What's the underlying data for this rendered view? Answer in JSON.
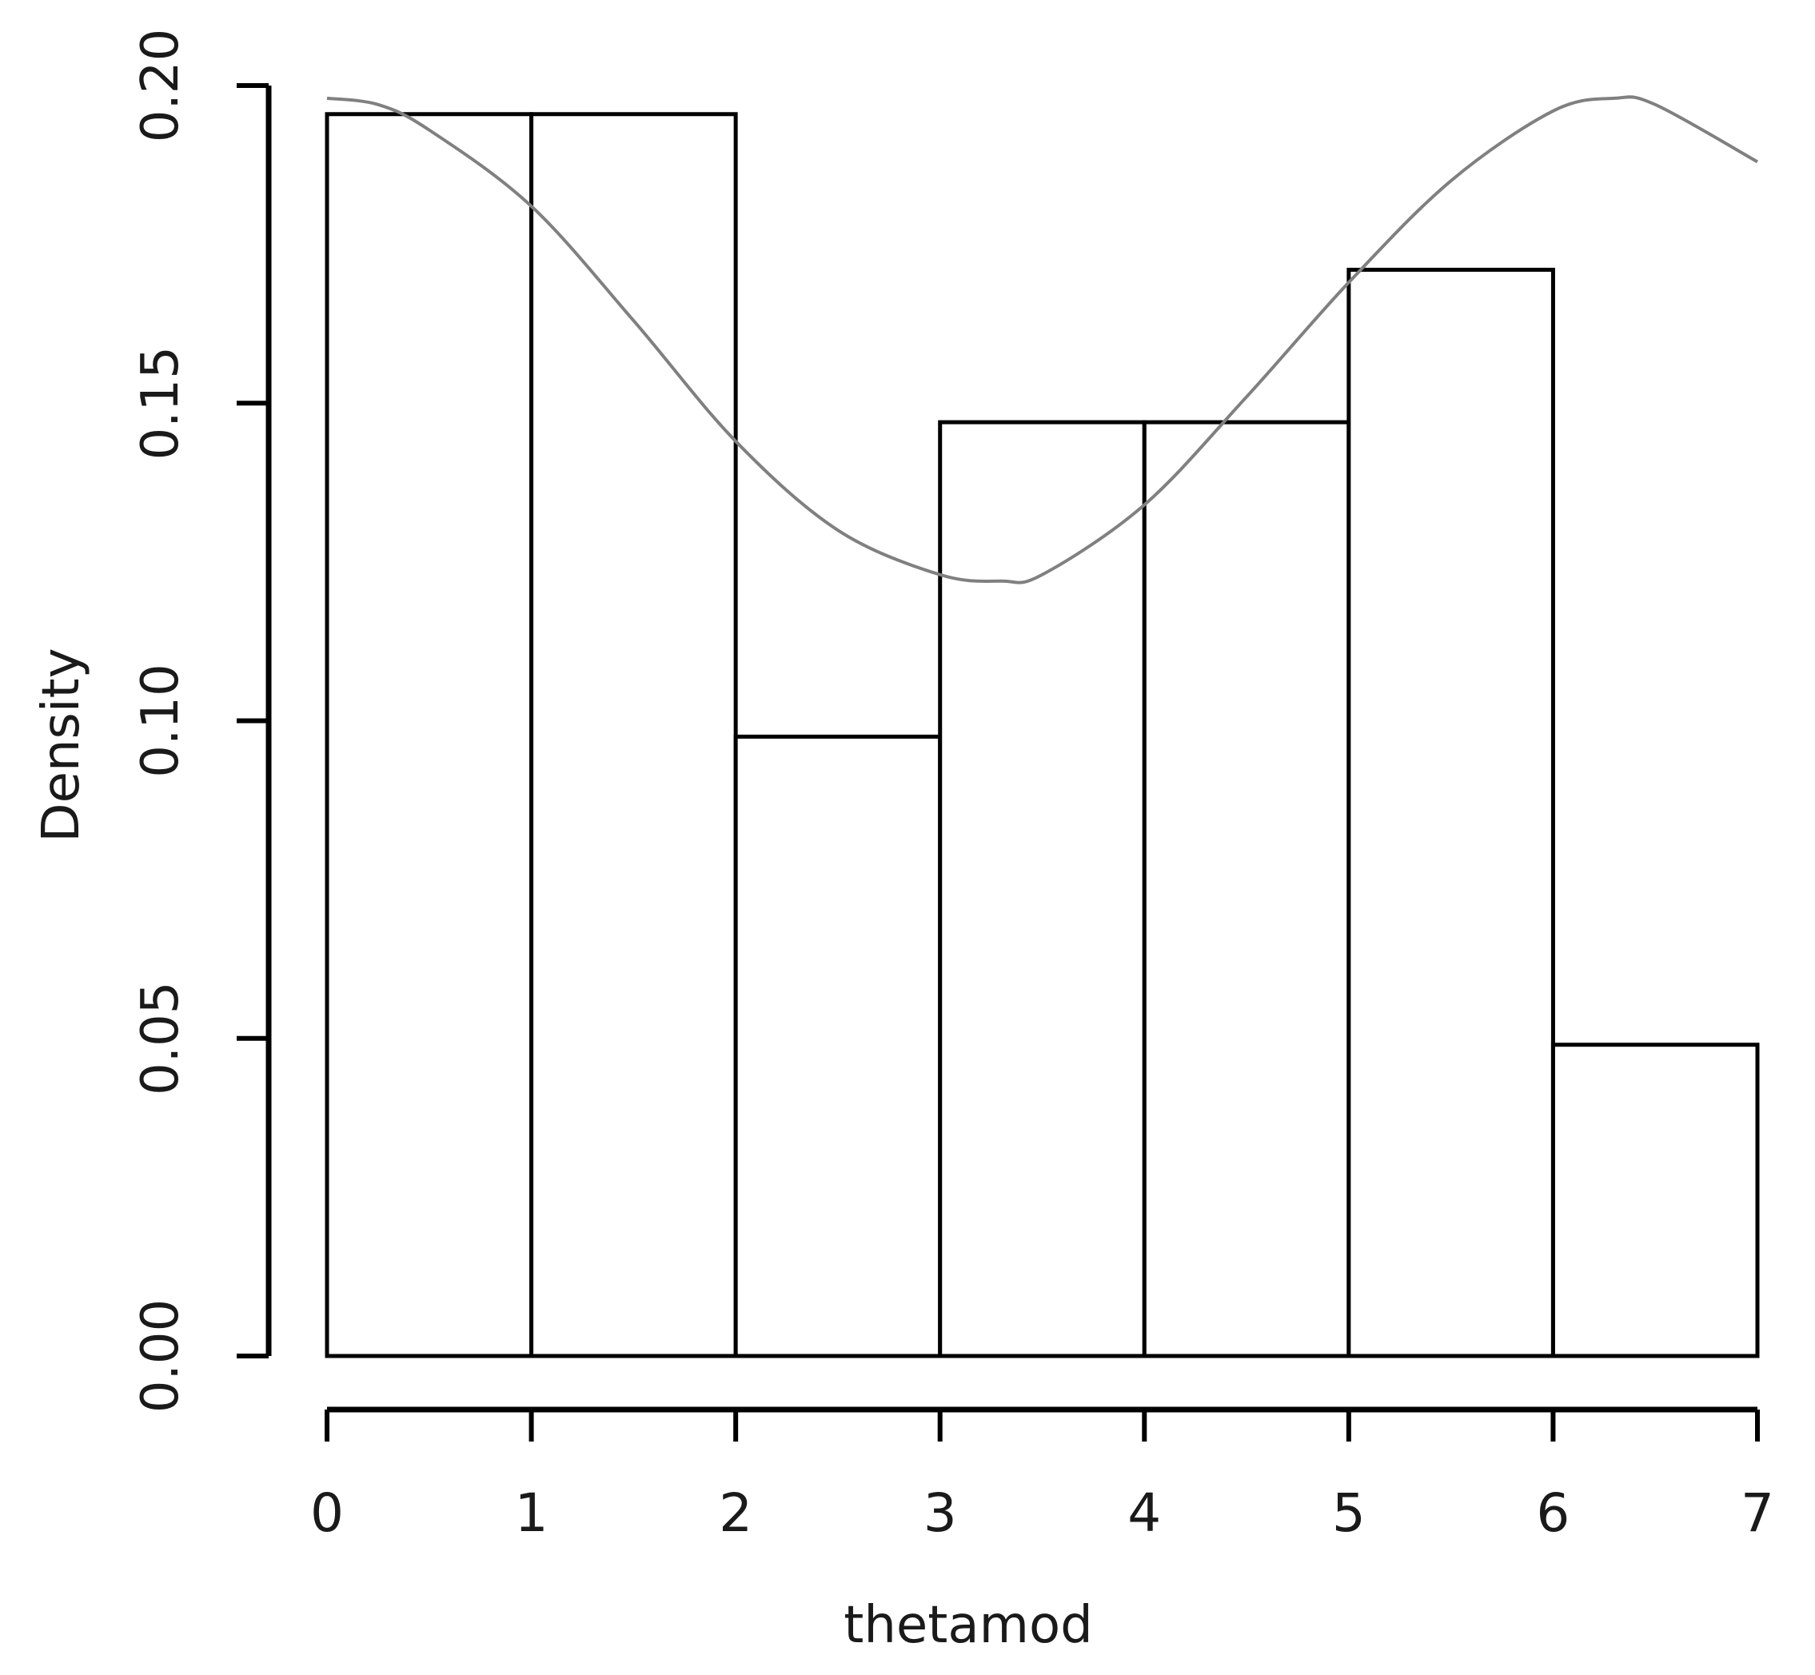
{
  "chart_data": {
    "type": "bar",
    "title": "",
    "xlabel": "thetamod",
    "ylabel": "Density",
    "xlim": [
      0,
      7
    ],
    "ylim": [
      0,
      0.2
    ],
    "x_ticks": [
      "0",
      "1",
      "2",
      "3",
      "4",
      "5",
      "6",
      "7"
    ],
    "y_ticks": [
      "0.00",
      "0.05",
      "0.10",
      "0.15",
      "0.20"
    ],
    "grid": false,
    "legend": "none",
    "bins": [
      {
        "start": 0,
        "end": 1,
        "value": 0.1955
      },
      {
        "start": 1,
        "end": 2,
        "value": 0.1955
      },
      {
        "start": 2,
        "end": 3,
        "value": 0.0975
      },
      {
        "start": 3,
        "end": 4,
        "value": 0.147
      },
      {
        "start": 4,
        "end": 5,
        "value": 0.147
      },
      {
        "start": 5,
        "end": 6,
        "value": 0.171
      },
      {
        "start": 6,
        "end": 7,
        "value": 0.049
      }
    ],
    "density_curve": {
      "x": [
        0,
        0.25,
        0.5,
        1,
        1.5,
        2,
        2.5,
        3,
        3.3,
        3.5,
        4,
        4.5,
        5,
        5.5,
        6,
        6.3,
        6.5,
        7
      ],
      "y": [
        0.198,
        0.197,
        0.193,
        0.181,
        0.163,
        0.144,
        0.13,
        0.123,
        0.122,
        0.123,
        0.134,
        0.151,
        0.169,
        0.185,
        0.196,
        0.198,
        0.197,
        0.188
      ]
    },
    "colors": {
      "bar_stroke": "#000000",
      "bar_fill": "#ffffff",
      "curve": "#808080",
      "axis": "#000000"
    }
  }
}
